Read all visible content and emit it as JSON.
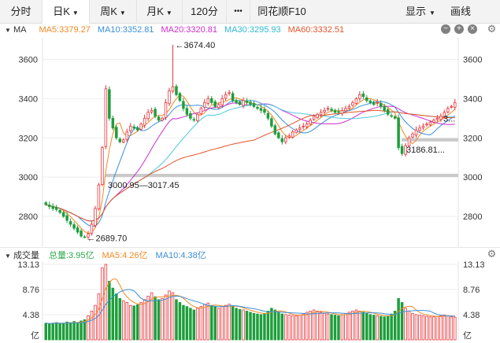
{
  "tabs": [
    {
      "label": "分时",
      "active": false
    },
    {
      "label": "日K",
      "active": true
    },
    {
      "label": "周K",
      "active": false
    },
    {
      "label": "月K",
      "active": false
    },
    {
      "label": "120分",
      "active": false
    },
    {
      "label": "•••",
      "active": false
    },
    {
      "label": "同花顺F10",
      "active": false
    }
  ],
  "menu": {
    "show_label": "显示",
    "draw_label": "画线"
  },
  "price_panel": {
    "title": "MA",
    "ma": [
      {
        "name": "MA5",
        "text": "MA5:3379.27",
        "color": "#f08a24"
      },
      {
        "name": "MA10",
        "text": "MA10:3352.81",
        "color": "#3a8fd9"
      },
      {
        "name": "MA20",
        "text": "MA20:3320.81",
        "color": "#cc2fcc"
      },
      {
        "name": "MA30",
        "text": "MA30:3295.93",
        "color": "#4fc8e0"
      },
      {
        "name": "MA60",
        "text": "MA60:3332.51",
        "color": "#e5532b"
      }
    ]
  },
  "volume_panel": {
    "title": "成交量",
    "items": [
      {
        "text": "总量:3.95亿",
        "color": "#2ba84a"
      },
      {
        "text": "MA5:4.26亿",
        "color": "#f08a24"
      },
      {
        "text": "MA10:4.38亿",
        "color": "#3a8fd9"
      }
    ]
  },
  "chart_data": [
    {
      "type": "candlestick",
      "y_ticks": [
        2800,
        3000,
        3200,
        3400,
        3600
      ],
      "ylim": [
        2660,
        3710
      ],
      "annotations": {
        "high": {
          "label": "←3674.40",
          "value": 3674.4
        },
        "low": {
          "label": "←2689.70",
          "value": 2689.7
        },
        "gap_lower": {
          "label": "3000.95—3017.45",
          "value": 3009
        },
        "gap_upper": {
          "label": "3186.81...",
          "value": 3190
        },
        "last_label": "3..."
      },
      "price_path": [
        2860,
        2850,
        2840,
        2835,
        2820,
        2800,
        2780,
        2760,
        2740,
        2720,
        2700,
        2695,
        2710,
        2760,
        2840,
        2960,
        3150,
        3450,
        3300,
        3250,
        3200,
        3180,
        3190,
        3230,
        3260,
        3250,
        3240,
        3270,
        3300,
        3330,
        3340,
        3310,
        3290,
        3300,
        3380,
        3440,
        3460,
        3420,
        3390,
        3350,
        3320,
        3300,
        3290,
        3320,
        3350,
        3380,
        3400,
        3380,
        3360,
        3370,
        3400,
        3420,
        3430,
        3390,
        3380,
        3370,
        3390,
        3380,
        3370,
        3360,
        3350,
        3340,
        3330,
        3300,
        3260,
        3220,
        3200,
        3180,
        3200,
        3210,
        3230,
        3240,
        3250,
        3260,
        3270,
        3290,
        3310,
        3320,
        3330,
        3340,
        3350,
        3340,
        3330,
        3330,
        3340,
        3350,
        3360,
        3380,
        3400,
        3420,
        3410,
        3390,
        3380,
        3370,
        3380,
        3360,
        3340,
        3320,
        3310,
        3300,
        3150,
        3120,
        3160,
        3200,
        3220,
        3240,
        3250,
        3260,
        3270,
        3280,
        3290,
        3300,
        3310,
        3330,
        3350,
        3360,
        3380
      ]
    },
    {
      "type": "bar",
      "y_ticks": [
        "13.13",
        "8.76",
        "4.38"
      ],
      "y_unit": "亿",
      "ylim": [
        0,
        13.13
      ],
      "values": [
        2.9,
        2.8,
        2.9,
        3.0,
        2.8,
        2.9,
        3.1,
        3.0,
        3.2,
        3.0,
        3.3,
        3.5,
        4.2,
        5.0,
        6.0,
        8.0,
        12.5,
        13.13,
        10.2,
        9.0,
        8.0,
        7.2,
        6.8,
        6.5,
        6.0,
        5.9,
        6.1,
        6.5,
        7.0,
        7.6,
        8.2,
        7.5,
        7.0,
        7.2,
        7.8,
        8.5,
        8.2,
        7.0,
        6.5,
        6.0,
        5.8,
        5.5,
        5.2,
        5.5,
        5.8,
        6.2,
        6.4,
        6.0,
        5.8,
        5.5,
        5.8,
        6.0,
        6.2,
        5.8,
        5.5,
        5.3,
        5.2,
        5.0,
        4.8,
        4.6,
        4.5,
        4.4,
        4.6,
        5.0,
        5.5,
        5.2,
        4.8,
        4.5,
        4.4,
        4.3,
        4.2,
        4.2,
        4.3,
        4.5,
        4.8,
        5.0,
        5.2,
        5.0,
        4.8,
        4.6,
        4.5,
        4.4,
        4.3,
        4.2,
        4.4,
        4.6,
        4.8,
        5.0,
        5.2,
        5.0,
        4.8,
        4.6,
        4.4,
        4.3,
        4.2,
        4.1,
        4.0,
        4.2,
        4.5,
        5.0,
        7.2,
        6.5,
        5.5,
        5.0,
        4.6,
        4.4,
        4.3,
        4.2,
        4.1,
        4.0,
        4.0,
        4.1,
        4.2,
        4.3,
        4.2,
        4.0,
        3.95
      ]
    }
  ]
}
